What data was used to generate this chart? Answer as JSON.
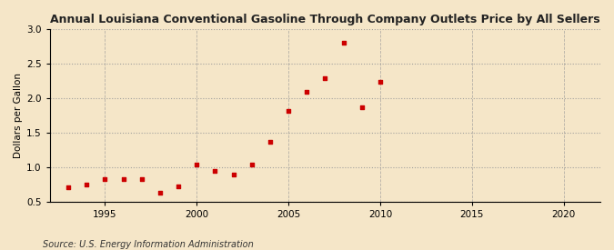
{
  "title": "Annual Louisiana Conventional Gasoline Through Company Outlets Price by All Sellers",
  "ylabel": "Dollars per Gallon",
  "source": "Source: U.S. Energy Information Administration",
  "years": [
    1993,
    1994,
    1995,
    1996,
    1997,
    1998,
    1999,
    2000,
    2001,
    2002,
    2003,
    2004,
    2005,
    2006,
    2007,
    2008,
    2009,
    2010
  ],
  "values": [
    0.71,
    0.75,
    0.82,
    0.83,
    0.82,
    0.63,
    0.72,
    1.03,
    0.94,
    0.89,
    1.04,
    1.36,
    1.82,
    2.09,
    2.29,
    2.8,
    1.87,
    2.24
  ],
  "marker_color": "#cc0000",
  "background_color": "#f5e6c8",
  "grid_color": "#999999",
  "xlim": [
    1992,
    2022
  ],
  "ylim": [
    0.5,
    3.0
  ],
  "xticks": [
    1995,
    2000,
    2005,
    2010,
    2015,
    2020
  ],
  "yticks": [
    0.5,
    1.0,
    1.5,
    2.0,
    2.5,
    3.0
  ]
}
